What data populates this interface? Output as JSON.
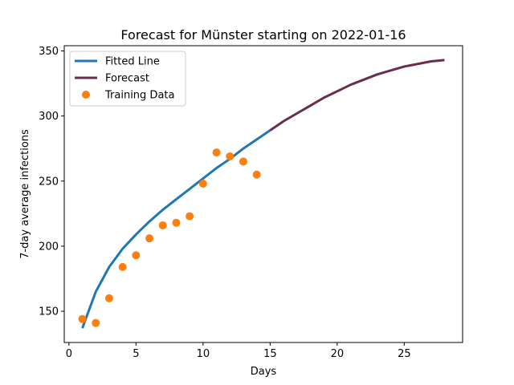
{
  "chart_data": {
    "type": "line",
    "title": "Forecast for Münster starting on 2022-01-16",
    "xlabel": "Days",
    "ylabel": "7-day average infections",
    "xlim": [
      -0.35,
      29.35
    ],
    "ylim": [
      126,
      354
    ],
    "xticks": [
      0,
      5,
      10,
      15,
      20,
      25
    ],
    "yticks": [
      150,
      200,
      250,
      300,
      350
    ],
    "grid": false,
    "legend": "top-left",
    "series": [
      {
        "name": "Fitted Line",
        "kind": "line",
        "color": "#1f77b4",
        "x": [
          1,
          2,
          3,
          4,
          5,
          6,
          7,
          8,
          9,
          10,
          11,
          12,
          13,
          14,
          15
        ],
        "y": [
          137,
          165,
          184,
          198,
          209,
          219,
          228,
          236,
          244,
          252,
          260,
          267,
          275,
          282,
          289
        ]
      },
      {
        "name": "Forecast",
        "kind": "line",
        "color": "#6b2d4f",
        "x": [
          15,
          16,
          17,
          18,
          19,
          20,
          21,
          22,
          23,
          24,
          25,
          26,
          27,
          28
        ],
        "y": [
          289,
          296,
          302,
          308,
          314,
          319,
          324,
          328,
          332,
          335,
          338,
          340,
          342,
          343
        ]
      },
      {
        "name": "Training Data",
        "kind": "scatter",
        "color": "#ff7f0e",
        "x": [
          1,
          2,
          3,
          4,
          5,
          6,
          7,
          8,
          9,
          10,
          11,
          12,
          13,
          14
        ],
        "y": [
          144,
          141,
          160,
          184,
          193,
          206,
          216,
          218,
          223,
          248,
          272,
          269,
          265,
          255
        ]
      }
    ]
  }
}
